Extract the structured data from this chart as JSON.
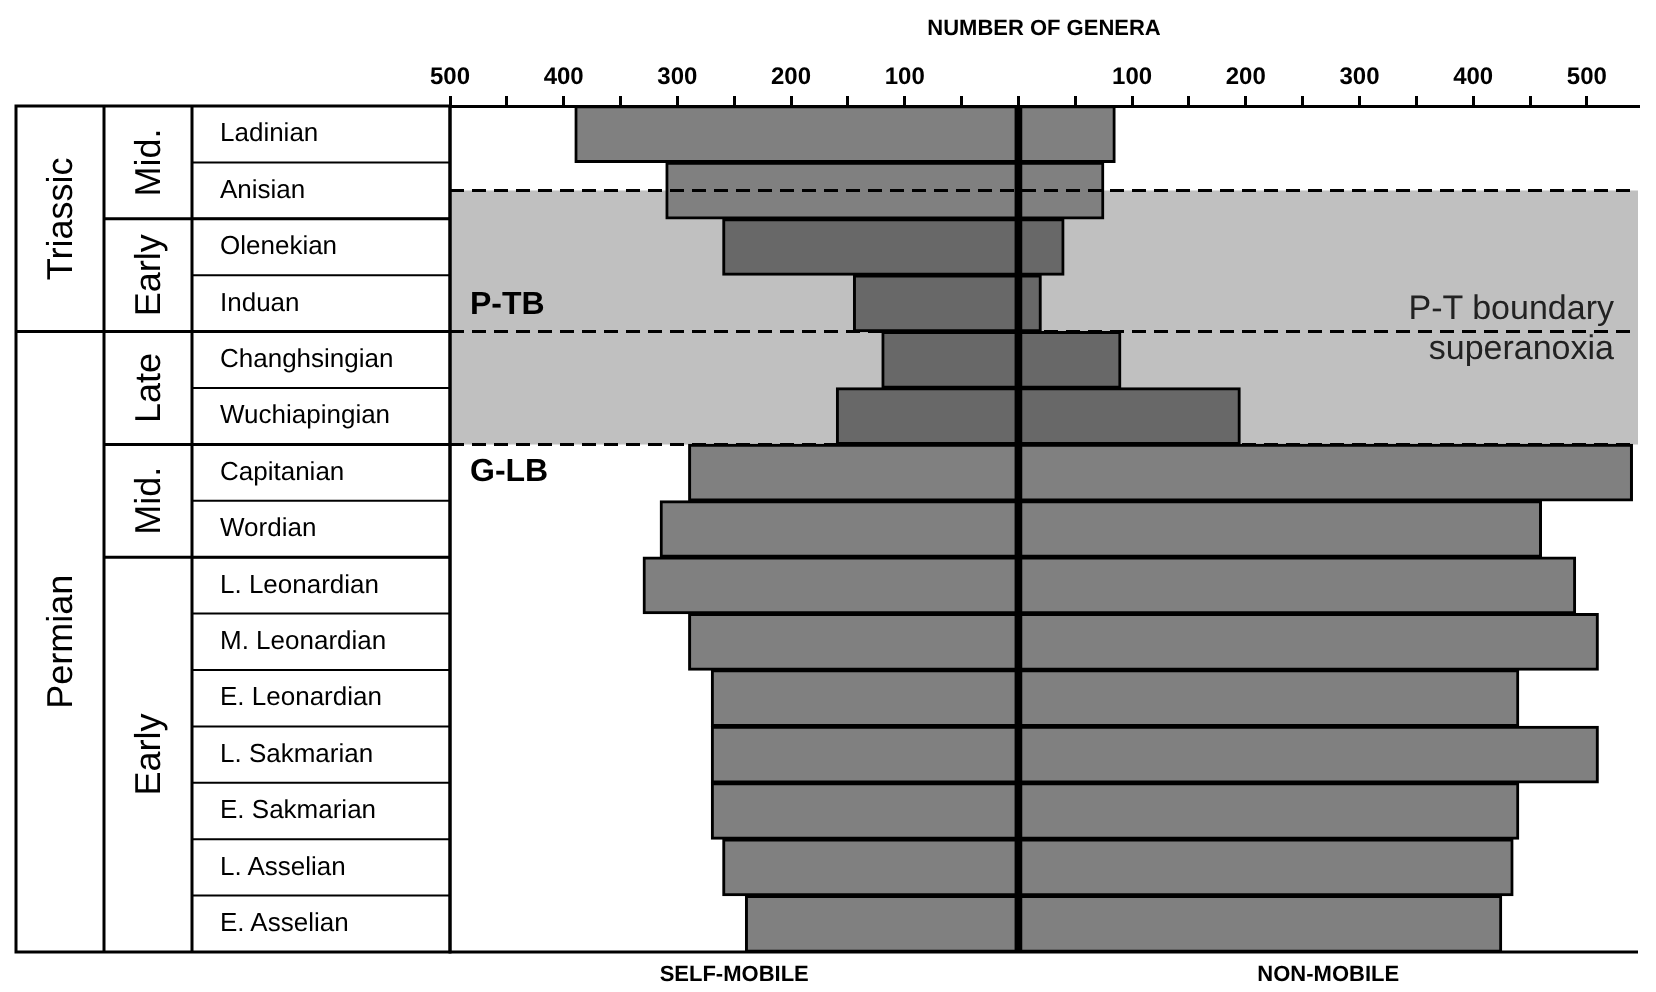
{
  "chart_data": {
    "type": "bar",
    "orientation": "horizontal",
    "stacked": true,
    "xlabel": "NUMBER OF GENERA",
    "categories": [
      "Ladinian",
      "Anisian",
      "Olenekian",
      "Induan",
      "Changhsingian",
      "Wuchiapingian",
      "Capitanian",
      "Wordian",
      "L. Leonardian",
      "M. Leonardian",
      "E. Leonardian",
      "L. Sakmarian",
      "E. Sakmarian",
      "L. Asselian",
      "E. Asselian"
    ],
    "series": [
      {
        "name": "SELF-MOBILE",
        "colors": [
          "#808080",
          "#808080",
          "#686868",
          "#686868",
          "#686868",
          "#686868",
          "#808080",
          "#808080",
          "#808080",
          "#808080",
          "#808080",
          "#808080",
          "#808080",
          "#808080",
          "#808080"
        ],
        "values": [
          -390,
          -310,
          -260,
          -145,
          -120,
          -160,
          -290,
          -315,
          -330,
          -290,
          -270,
          -270,
          -270,
          -260,
          -240
        ]
      },
      {
        "name": "NON-MOBILE",
        "colors": [
          "#808080",
          "#808080",
          "#686868",
          "#686868",
          "#686868",
          "#686868",
          "#808080",
          "#808080",
          "#808080",
          "#808080",
          "#808080",
          "#808080",
          "#808080",
          "#808080",
          "#808080"
        ],
        "values": [
          85,
          75,
          40,
          20,
          90,
          195,
          540,
          460,
          490,
          510,
          440,
          510,
          440,
          435,
          425
        ]
      }
    ],
    "xlim": [
      -500,
      545
    ],
    "xticks": [
      {
        "value": -500,
        "label": "500"
      },
      {
        "value": -450,
        "label": null
      },
      {
        "value": -400,
        "label": "400"
      },
      {
        "value": -350,
        "label": null
      },
      {
        "value": -300,
        "label": "300"
      },
      {
        "value": -250,
        "label": null
      },
      {
        "value": -200,
        "label": "200"
      },
      {
        "value": -150,
        "label": null
      },
      {
        "value": -100,
        "label": "100"
      },
      {
        "value": -50,
        "label": null
      },
      {
        "value": 0,
        "label": null
      },
      {
        "value": 50,
        "label": null
      },
      {
        "value": 100,
        "label": "100"
      },
      {
        "value": 150,
        "label": null
      },
      {
        "value": 200,
        "label": "200"
      },
      {
        "value": 250,
        "label": null
      },
      {
        "value": 300,
        "label": "300"
      },
      {
        "value": 350,
        "label": null
      },
      {
        "value": 400,
        "label": "400"
      },
      {
        "value": 450,
        "label": null
      },
      {
        "value": 500,
        "label": "500"
      }
    ],
    "bands": [
      {
        "axis": "y",
        "from": "Anisian",
        "to": "Wuchiapingian",
        "label": "P-T boundary superanoxia",
        "color": "#c0c0c0"
      }
    ],
    "ref_lines": [
      {
        "axis": "y",
        "value": "Induan",
        "label": "P-TB",
        "line_style": "dashed"
      },
      {
        "axis": "y",
        "value": "Wuchiapingian",
        "label": "G-LB",
        "line_style": "dashed"
      }
    ],
    "annotations": [
      "Triassic",
      "Permian",
      "Mid.",
      "Early",
      "Late",
      "Mid.",
      "Early"
    ],
    "grid": false,
    "legend": false
  }
}
